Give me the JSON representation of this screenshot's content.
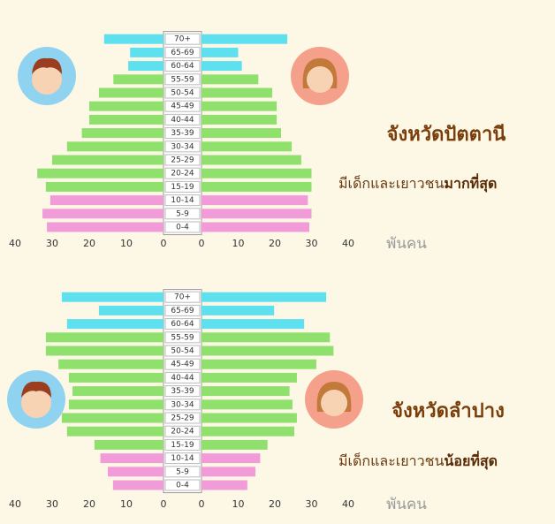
{
  "chart_data": [
    {
      "type": "pyramid",
      "title": "จังหวัดปัตตานี",
      "subtitle_parts": [
        "มีเด็กและเยาวชน",
        "มากที่สุด"
      ],
      "x_unit": "พันคน",
      "categories": [
        "0-4",
        "5-9",
        "10-14",
        "15-19",
        "20-24",
        "25-29",
        "30-34",
        "35-39",
        "40-44",
        "45-49",
        "50-54",
        "55-59",
        "60-64",
        "65-69",
        "70+"
      ],
      "colors": [
        "#f29bd9",
        "#f29bd9",
        "#f29bd9",
        "#8fe06c",
        "#8fe06c",
        "#8fe06c",
        "#8fe06c",
        "#8fe06c",
        "#8fe06c",
        "#8fe06c",
        "#8fe06c",
        "#8fe06c",
        "#5fe0ee",
        "#5fe0ee",
        "#5fe0ee"
      ],
      "series": [
        {
          "values": [
            31.4,
            32.6,
            30.5,
            31.7,
            34,
            30,
            26,
            22,
            20,
            20,
            17.4,
            13.5,
            9.5,
            9,
            16
          ]
        },
        {
          "values": [
            29.4,
            30,
            29,
            30,
            30,
            27.2,
            24.6,
            21.7,
            20.5,
            20.5,
            19.3,
            15.5,
            11,
            10,
            23.4
          ]
        }
      ],
      "xlim": [
        0,
        40
      ],
      "xticks": [
        0,
        10,
        20,
        30,
        40
      ]
    },
    {
      "type": "pyramid",
      "title": "จังหวัดลำปาง",
      "subtitle_parts": [
        "มีเด็กและเยาวชน",
        "น้อยที่สุด"
      ],
      "x_unit": "พันคน",
      "categories": [
        "0-4",
        "5-9",
        "10-14",
        "15-19",
        "20-24",
        "25-29",
        "30-34",
        "35-39",
        "40-44",
        "45-49",
        "50-54",
        "55-59",
        "60-64",
        "65-69",
        "70+"
      ],
      "colors": [
        "#f29bd9",
        "#f29bd9",
        "#f29bd9",
        "#8fe06c",
        "#8fe06c",
        "#8fe06c",
        "#8fe06c",
        "#8fe06c",
        "#8fe06c",
        "#8fe06c",
        "#8fe06c",
        "#8fe06c",
        "#5fe0ee",
        "#5fe0ee",
        "#5fe0ee"
      ],
      "series": [
        {
          "values": [
            13.6,
            15,
            17,
            18.6,
            26,
            27.4,
            25.5,
            24.5,
            25.5,
            28.3,
            31.7,
            31.7,
            26,
            17.4,
            27.4
          ]
        },
        {
          "values": [
            12.5,
            14.7,
            16,
            18,
            25.3,
            26,
            24.8,
            24,
            26,
            31.3,
            36,
            35,
            28,
            19.8,
            34
          ]
        }
      ],
      "xlim": [
        0,
        40
      ],
      "xticks": [
        0,
        10,
        20,
        30,
        40
      ]
    }
  ]
}
